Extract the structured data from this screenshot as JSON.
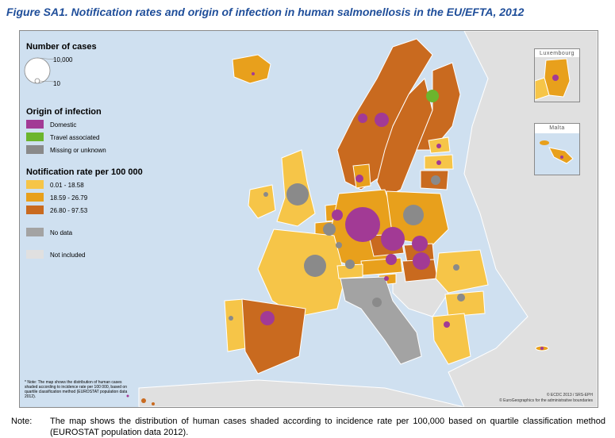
{
  "title": "Figure SA1.  Notification rates and origin of infection in human salmonellosis in the EU/EFTA, 2012",
  "legend": {
    "cases_heading": "Number of cases",
    "cases_max_label": "10,000",
    "cases_min_label": "10",
    "origin_heading": "Origin of infection",
    "origin_items": [
      {
        "label": "Domestic",
        "color": "#a23a95"
      },
      {
        "label": "Travel associated",
        "color": "#6cb52d"
      },
      {
        "label": "Missing or unknown",
        "color": "#8a8a8a"
      }
    ],
    "rate_heading": "Notification rate per 100 000",
    "rate_items": [
      {
        "label": "0.01 - 18.58",
        "color": "#f6c548"
      },
      {
        "label": "18.59 - 26.79",
        "color": "#e8a01c"
      },
      {
        "label": "26.80 - 97.53",
        "color": "#c96a1f"
      }
    ],
    "no_data_label": "No data",
    "no_data_color": "#a3a3a3",
    "not_included_label": "Not included",
    "not_included_color": "#e0e0e0"
  },
  "insets": {
    "luxembourg_title": "Luxembourg",
    "malta_title": "Malta"
  },
  "map_footnote": "* Note: The map shows the distribution of human cases shaded according to incidence rate per 100 000, based on quartile classification method (EUROSTAT population data 2012).",
  "copyright_lines": [
    "© ECDC 2013 / SRS-EPH",
    "© EuroGeographics for the administrative boundaries"
  ],
  "note": {
    "label": "Note:",
    "text": "The map shows the distribution of human cases shaded according to incidence rate per 100,000 based on quartile classification method (EUROSTAT population data 2012)."
  }
}
